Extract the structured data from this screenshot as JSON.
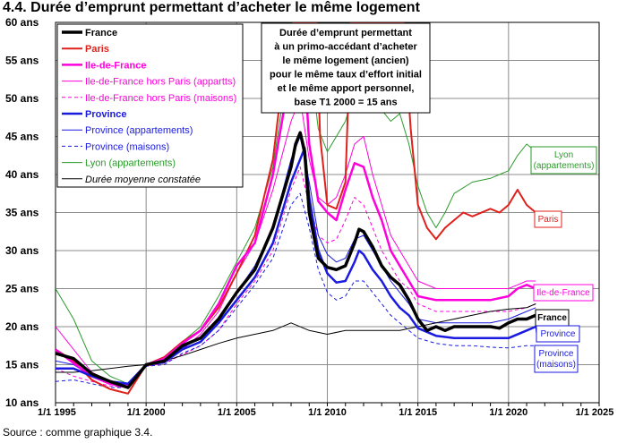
{
  "title": "4.4. Durée d’emprunt permettant d’acheter le même logement",
  "source": "Source : comme graphique 3.4.",
  "chart_data": {
    "type": "line",
    "xlim": [
      1995,
      2025
    ],
    "ylim": [
      10,
      60
    ],
    "y_unit": "ans",
    "grid": true,
    "x_ticks": [
      {
        "value": 1995,
        "label": "1/1 1995"
      },
      {
        "value": 2000,
        "label": "1/1 2000"
      },
      {
        "value": 2005,
        "label": "1/1 2005"
      },
      {
        "value": 2010,
        "label": "1/1 2010"
      },
      {
        "value": 2015,
        "label": "1/1 2015"
      },
      {
        "value": 2020,
        "label": "1/1 2020"
      },
      {
        "value": 2025,
        "label": "1/1 2025"
      }
    ],
    "y_ticks": [
      {
        "value": 10,
        "label": "10 ans"
      },
      {
        "value": 15,
        "label": "15 ans"
      },
      {
        "value": 20,
        "label": "20 ans"
      },
      {
        "value": 25,
        "label": "25 ans"
      },
      {
        "value": 30,
        "label": "30 ans"
      },
      {
        "value": 35,
        "label": "35 ans"
      },
      {
        "value": 40,
        "label": "40 ans"
      },
      {
        "value": 45,
        "label": "45 ans"
      },
      {
        "value": 50,
        "label": "50 ans"
      },
      {
        "value": 55,
        "label": "55 ans"
      },
      {
        "value": 60,
        "label": "60 ans"
      }
    ],
    "annotation": "Durée d’emprunt permettant\nà un primo-accédant d’acheter\nle même logement (ancien)\npour le même taux d’effort initial\net le même apport personnel,\nbase T1 2000 = 15 ans",
    "legend_position": "top-left",
    "series": [
      {
        "name": "France",
        "color": "#000000",
        "width": 3.5,
        "dash": "",
        "bold": true,
        "italic": false,
        "end_label": "France",
        "x": [
          1995,
          1996,
          1997,
          1998,
          1999,
          2000,
          2001,
          2002,
          2003,
          2004,
          2005,
          2006,
          2007,
          2007.5,
          2008,
          2008.25,
          2008.5,
          2008.75,
          2009,
          2009.5,
          2010,
          2010.5,
          2011,
          2011.5,
          2011.75,
          2012,
          2012.5,
          2013,
          2013.5,
          2014,
          2014.5,
          2015,
          2015.5,
          2016,
          2016.5,
          2017,
          2018,
          2019,
          2019.5,
          2020,
          2020.5,
          2021,
          2021.5
        ],
        "y": [
          16.5,
          15.8,
          13.8,
          12.8,
          12.0,
          15.0,
          15.5,
          17.5,
          18.5,
          21.0,
          24.5,
          27.5,
          33.0,
          37.0,
          41.0,
          44.0,
          45.5,
          43.0,
          35.0,
          29.0,
          27.8,
          27.5,
          28.0,
          31.0,
          32.8,
          32.5,
          30.5,
          28.0,
          26.5,
          25.5,
          23.5,
          21.0,
          19.5,
          20.0,
          19.5,
          20.0,
          20.0,
          20.0,
          19.8,
          20.5,
          21.0,
          21.0,
          21.5
        ]
      },
      {
        "name": "Paris",
        "color": "#e0201b",
        "width": 2,
        "dash": "",
        "bold": true,
        "italic": false,
        "end_label": "Paris",
        "x": [
          1995,
          1996,
          1997,
          1998,
          1999,
          2000,
          2001,
          2002,
          2003,
          2004,
          2005,
          2006,
          2007,
          2007.5,
          2008,
          2008.2,
          2009.4,
          2009.6,
          2010,
          2010.5,
          2011,
          2011.3,
          2014.2,
          2014.6,
          2015,
          2015.5,
          2016,
          2016.5,
          2017,
          2017.5,
          2018,
          2019,
          2019.5,
          2020,
          2020.5,
          2021,
          2021.5
        ],
        "y": [
          17.0,
          15.5,
          13.0,
          11.8,
          11.2,
          15.0,
          16.0,
          18.0,
          19.5,
          22.5,
          27.0,
          32.0,
          42.0,
          52.0,
          58.0,
          60.0,
          60.0,
          45.0,
          36.0,
          35.5,
          39.0,
          60.0,
          60.0,
          46.0,
          36.0,
          33.0,
          31.5,
          33.0,
          34.0,
          35.0,
          34.5,
          35.5,
          35.0,
          36.0,
          38.0,
          36.0,
          35.0
        ]
      },
      {
        "name": "Ile-de-France",
        "color": "#ff00dd",
        "width": 2.5,
        "dash": "",
        "bold": true,
        "italic": false,
        "end_label": "Ile-de-France",
        "x": [
          1995,
          1996,
          1997,
          1998,
          1999,
          2000,
          2001,
          2002,
          2003,
          2004,
          2005,
          2006,
          2007,
          2007.5,
          2008,
          2008.5,
          2008.8,
          2009,
          2009.5,
          2010,
          2010.5,
          2011,
          2011.5,
          2012,
          2012.5,
          2013,
          2013.5,
          2014,
          2014.5,
          2015,
          2016,
          2017,
          2018,
          2019,
          2020,
          2020.5,
          2021,
          2021.5
        ],
        "y": [
          17.0,
          15.2,
          13.5,
          12.5,
          12.0,
          15.0,
          15.8,
          17.8,
          19.5,
          23.0,
          28.0,
          31.0,
          40.0,
          47.0,
          54.0,
          55.0,
          52.0,
          44.0,
          36.5,
          35.0,
          34.0,
          38.0,
          41.5,
          41.0,
          37.0,
          34.0,
          30.0,
          28.0,
          26.0,
          24.0,
          23.5,
          23.5,
          23.5,
          23.5,
          24.0,
          25.0,
          25.5,
          25.0
        ]
      },
      {
        "name": "Ile-de-France hors Paris (appartts)",
        "color": "#ff00dd",
        "width": 1,
        "dash": "",
        "bold": false,
        "italic": false,
        "end_label": "",
        "x": [
          1995,
          1996,
          1997,
          1998,
          1999,
          2000,
          2001,
          2002,
          2003,
          2004,
          2005,
          2006,
          2007,
          2008,
          2008.5,
          2009,
          2009.5,
          2010,
          2010.5,
          2011,
          2011.5,
          2012,
          2012.5,
          2013,
          2013.5,
          2014,
          2014.5,
          2015,
          2016,
          2017,
          2018,
          2019,
          2020,
          2020.5,
          2021,
          2021.5
        ],
        "y": [
          20.0,
          17.0,
          14.0,
          12.8,
          12.3,
          15.0,
          15.5,
          17.0,
          19.0,
          22.0,
          27.0,
          31.0,
          38.0,
          47.0,
          50.0,
          42.0,
          37.0,
          36.0,
          37.0,
          40.0,
          44.0,
          45.0,
          40.0,
          36.0,
          32.0,
          30.0,
          28.0,
          26.0,
          25.0,
          25.0,
          25.0,
          25.0,
          25.0,
          25.5,
          26.0,
          26.0
        ]
      },
      {
        "name": "Ile-de-France hors Paris (maisons)",
        "color": "#ff00dd",
        "width": 1,
        "dash": "4,3",
        "bold": false,
        "italic": false,
        "end_label": "",
        "x": [
          1995,
          1996,
          1997,
          1998,
          1999,
          2000,
          2001,
          2002,
          2003,
          2004,
          2005,
          2006,
          2007,
          2008,
          2008.5,
          2009,
          2009.5,
          2010,
          2010.5,
          2011,
          2011.5,
          2012,
          2012.5,
          2013,
          2013.5,
          2014,
          2014.5,
          2015,
          2016,
          2017,
          2018,
          2019,
          2020,
          2021,
          2021.5
        ],
        "y": [
          14.5,
          13.5,
          12.8,
          12.2,
          12.0,
          14.8,
          15.2,
          16.3,
          17.5,
          19.5,
          23.0,
          26.0,
          30.0,
          38.0,
          41.0,
          36.0,
          32.0,
          31.0,
          31.5,
          34.0,
          37.0,
          36.0,
          33.0,
          30.0,
          28.0,
          26.0,
          25.0,
          23.0,
          22.0,
          22.0,
          22.0,
          22.0,
          22.0,
          22.5,
          23.0
        ]
      },
      {
        "name": "Province",
        "color": "#1a1ae0",
        "width": 2.5,
        "dash": "",
        "bold": true,
        "italic": false,
        "end_label": "Province",
        "x": [
          1995,
          1996,
          1997,
          1998,
          1999,
          2000,
          2001,
          2002,
          2003,
          2004,
          2005,
          2006,
          2007,
          2007.5,
          2008,
          2008.5,
          2008.75,
          2009,
          2009.5,
          2010,
          2010.5,
          2011,
          2011.5,
          2011.75,
          2012,
          2012.5,
          2013,
          2013.5,
          2014,
          2014.5,
          2015,
          2016,
          2017,
          2018,
          2019,
          2020,
          2021,
          2021.5
        ],
        "y": [
          14.5,
          14.5,
          13.5,
          12.8,
          12.5,
          15.0,
          15.3,
          17.0,
          18.0,
          20.5,
          23.5,
          26.5,
          31.0,
          35.0,
          39.0,
          42.0,
          43.5,
          37.0,
          30.0,
          27.0,
          25.8,
          26.0,
          28.5,
          30.0,
          29.5,
          27.5,
          26.0,
          24.0,
          22.5,
          21.5,
          19.8,
          18.8,
          18.5,
          18.5,
          18.5,
          18.5,
          19.5,
          20.0
        ]
      },
      {
        "name": "Province (appartements)",
        "color": "#1a1ae0",
        "width": 1,
        "dash": "",
        "bold": false,
        "italic": false,
        "end_label": "",
        "x": [
          1995,
          1996,
          1997,
          1998,
          1999,
          2000,
          2001,
          2002,
          2003,
          2004,
          2005,
          2006,
          2007,
          2008,
          2008.5,
          2009,
          2009.5,
          2010,
          2010.5,
          2011,
          2011.5,
          2012,
          2012.5,
          2013,
          2013.5,
          2014,
          2014.5,
          2015,
          2016,
          2017,
          2018,
          2019,
          2020,
          2021,
          2021.5
        ],
        "y": [
          15.5,
          15.0,
          13.5,
          12.5,
          12.0,
          15.0,
          15.5,
          17.2,
          18.5,
          21.0,
          24.5,
          28.0,
          33.0,
          42.0,
          45.0,
          39.0,
          32.0,
          29.5,
          28.5,
          29.0,
          31.5,
          32.0,
          30.0,
          28.0,
          26.0,
          24.5,
          23.0,
          21.0,
          20.5,
          20.5,
          20.5,
          20.5,
          21.0,
          22.0,
          22.5
        ]
      },
      {
        "name": "Province (maisons)",
        "color": "#1a1ae0",
        "width": 1,
        "dash": "4,3",
        "bold": false,
        "italic": false,
        "end_label": "Province\n(maisons)",
        "x": [
          1995,
          1996,
          1997,
          1998,
          1999,
          2000,
          2001,
          2002,
          2003,
          2004,
          2005,
          2006,
          2007,
          2008,
          2008.5,
          2009,
          2009.5,
          2010,
          2010.5,
          2011,
          2011.5,
          2012,
          2012.5,
          2013,
          2013.5,
          2014,
          2014.5,
          2015,
          2016,
          2017,
          2018,
          2019,
          2020,
          2021,
          2021.5
        ],
        "y": [
          12.8,
          13.0,
          12.5,
          12.0,
          12.0,
          14.8,
          15.0,
          16.5,
          17.5,
          19.5,
          22.5,
          25.5,
          29.0,
          36.0,
          37.5,
          33.0,
          27.5,
          24.5,
          23.5,
          24.0,
          26.0,
          26.0,
          24.5,
          23.0,
          21.5,
          20.5,
          19.5,
          18.5,
          17.8,
          17.5,
          17.5,
          17.3,
          17.2,
          17.5,
          17.5
        ]
      },
      {
        "name": "Lyon (appartements)",
        "color": "#2a9a2a",
        "width": 1,
        "dash": "",
        "bold": false,
        "italic": false,
        "end_label": "Lyon\n(appartements)",
        "x": [
          1995,
          1996,
          1997,
          1998,
          1999,
          2000,
          2001,
          2002,
          2003,
          2004,
          2005,
          2006,
          2007,
          2007.5,
          2008,
          2008.1,
          2008.9,
          2009.2,
          2009.5,
          2010,
          2011,
          2011.5,
          2012,
          2012.5,
          2013,
          2013.5,
          2014,
          2014.5,
          2015,
          2015.5,
          2016,
          2016.5,
          2017,
          2018,
          2019,
          2019.5,
          2020,
          2020.5,
          2021,
          2021.5
        ],
        "y": [
          25.0,
          21.0,
          15.5,
          13.5,
          12.5,
          15.0,
          16.0,
          18.0,
          20.0,
          24.0,
          28.5,
          33.0,
          41.0,
          49.0,
          56.0,
          60.0,
          60.0,
          52.0,
          46.0,
          43.0,
          47.0,
          51.0,
          52.0,
          49.0,
          48.5,
          47.0,
          48.0,
          44.0,
          38.5,
          35.0,
          33.0,
          35.0,
          37.5,
          39.0,
          39.5,
          40.0,
          40.5,
          42.5,
          44.0,
          43.0
        ]
      },
      {
        "name": "Durée moyenne constatée",
        "color": "#000000",
        "width": 1,
        "dash": "",
        "bold": false,
        "italic": true,
        "end_label": "",
        "x": [
          1995,
          1996,
          1997,
          1998,
          1999,
          2000,
          2001,
          2002,
          2003,
          2004,
          2005,
          2006,
          2007,
          2008,
          2009,
          2010,
          2011,
          2012,
          2013,
          2014,
          2015,
          2016,
          2017,
          2018,
          2019,
          2020,
          2021,
          2021.5
        ],
        "y": [
          14.0,
          14.0,
          14.2,
          14.5,
          14.8,
          15.0,
          15.5,
          16.2,
          17.0,
          17.8,
          18.5,
          19.0,
          19.5,
          20.5,
          19.5,
          19.0,
          19.5,
          19.5,
          19.5,
          19.5,
          20.0,
          20.5,
          21.0,
          21.5,
          22.0,
          22.3,
          22.5,
          23.0
        ]
      }
    ]
  }
}
